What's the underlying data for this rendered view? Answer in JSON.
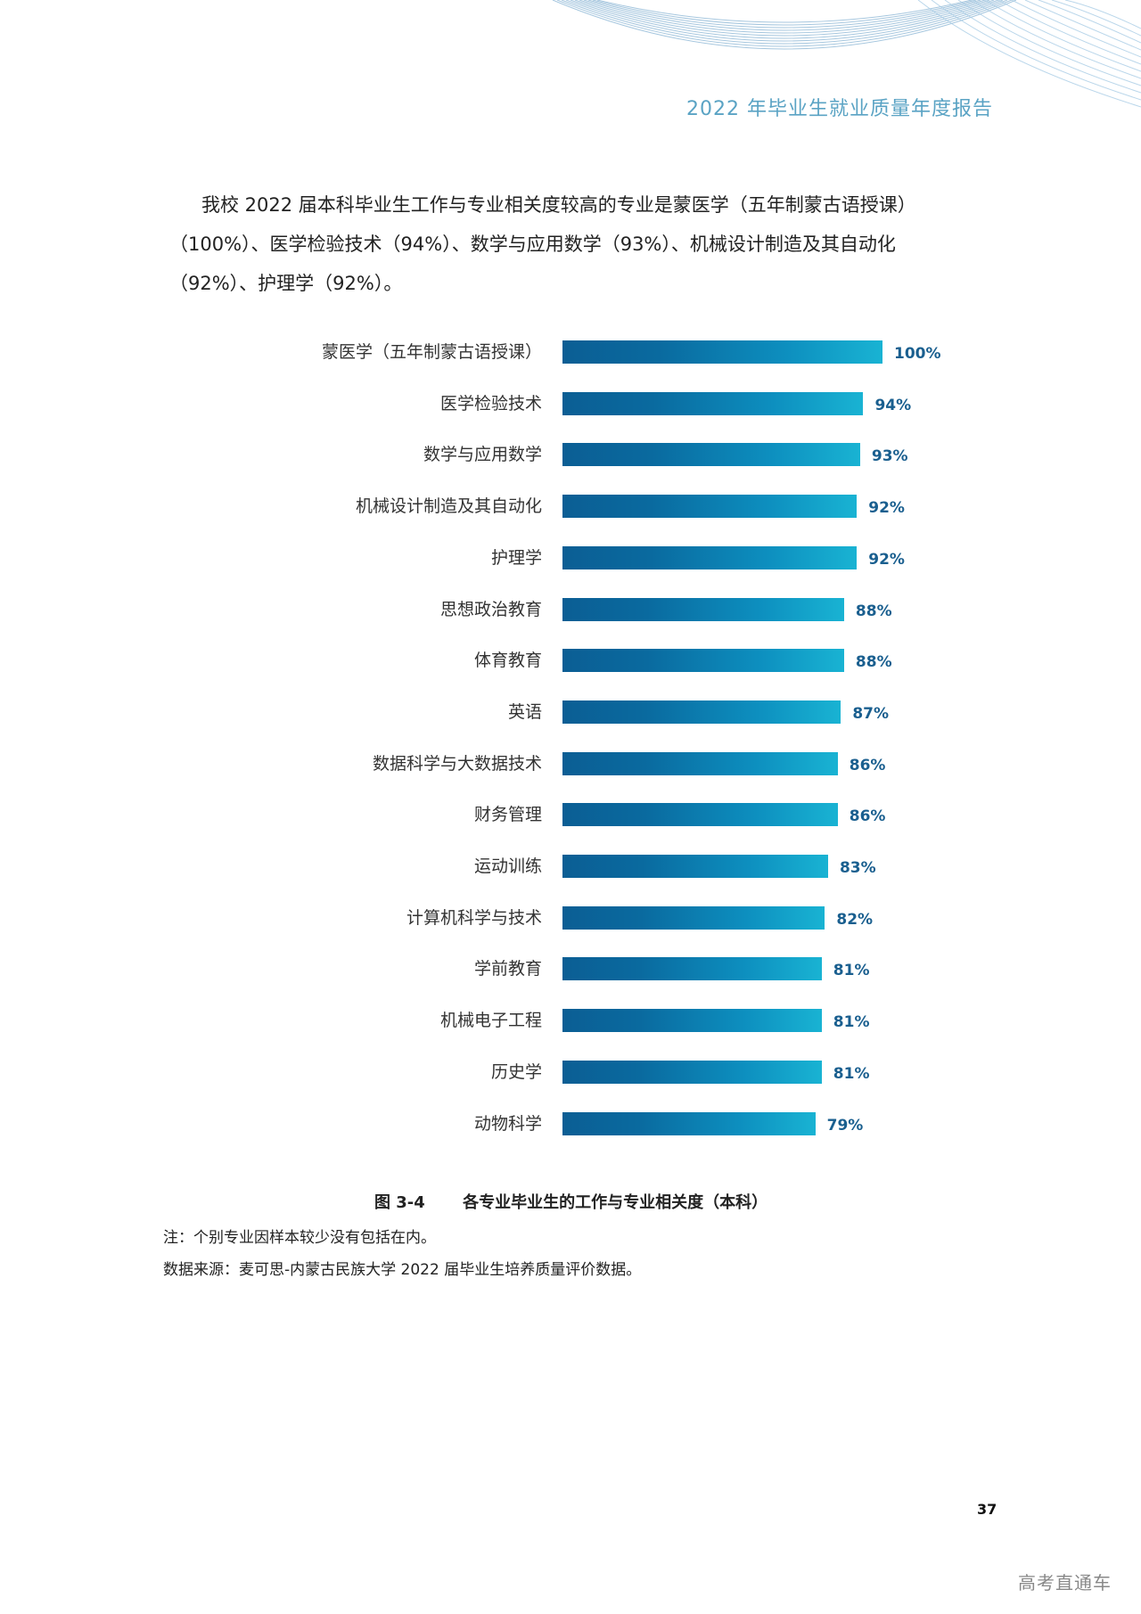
{
  "header": {
    "title": "2022 年毕业生就业质量年度报告"
  },
  "paragraph": {
    "lines": [
      "我校 2022 届本科毕业生工作与专业相关度较高的专业是蒙医学（五年制蒙古语授课）",
      "（100%）、医学检验技术（94%）、数学与应用数学（93%）、机械设计制造及其自动化",
      "（92%）、护理学（92%）。"
    ]
  },
  "chart_data": {
    "type": "bar",
    "orientation": "horizontal",
    "title": "各专业毕业生的工作与专业相关度（本科）",
    "figure_number": "图 3-4",
    "xlabel": "",
    "ylabel": "",
    "xlim": [
      0,
      100
    ],
    "grid": false,
    "legend": null,
    "value_suffix": "%",
    "bar_gradient": [
      "#0b5e94",
      "#19b3d3"
    ],
    "value_label_color": "#1a5f8f",
    "categories": [
      "蒙医学（五年制蒙古语授课）",
      "医学检验技术",
      "数学与应用数学",
      "机械设计制造及其自动化",
      "护理学",
      "思想政治教育",
      "体育教育",
      "英语",
      "数据科学与大数据技术",
      "财务管理",
      "运动训练",
      "计算机科学与技术",
      "学前教育",
      "机械电子工程",
      "历史学",
      "动物科学"
    ],
    "values": [
      100,
      94,
      93,
      92,
      92,
      88,
      88,
      87,
      86,
      86,
      83,
      82,
      81,
      81,
      81,
      79
    ],
    "value_labels": [
      "100%",
      "94%",
      "93%",
      "92%",
      "92%",
      "88%",
      "88%",
      "87%",
      "86%",
      "86%",
      "83%",
      "82%",
      "81%",
      "81%",
      "81%",
      "79%"
    ]
  },
  "caption": {
    "figure": "图 3-4",
    "title": "各专业毕业生的工作与专业相关度（本科）"
  },
  "note": "注：个别专业因样本较少没有包括在内。",
  "source": "数据来源：麦可思-内蒙古民族大学 2022 届毕业生培养质量评价数据。",
  "page_number": "37",
  "watermark": "高考直通车"
}
